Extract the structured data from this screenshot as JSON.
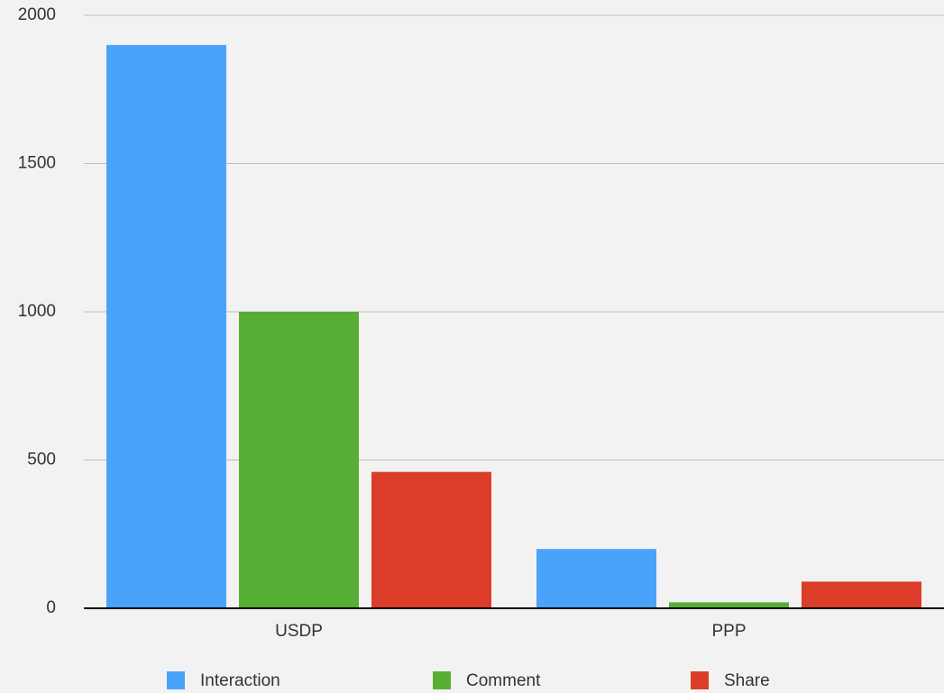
{
  "chart_data": {
    "type": "bar",
    "categories": [
      "USDP",
      "PPP"
    ],
    "series": [
      {
        "name": "Interaction",
        "color": "#4aa3fa",
        "values": [
          1900,
          200
        ]
      },
      {
        "name": "Comment",
        "color": "#57ae34",
        "values": [
          1000,
          20
        ]
      },
      {
        "name": "Share",
        "color": "#dc3d28",
        "values": [
          460,
          90
        ]
      }
    ],
    "ylim": [
      0,
      2000
    ],
    "yticks": [
      0,
      500,
      1000,
      1500,
      2000
    ],
    "grid": true,
    "legend": "bottom"
  }
}
